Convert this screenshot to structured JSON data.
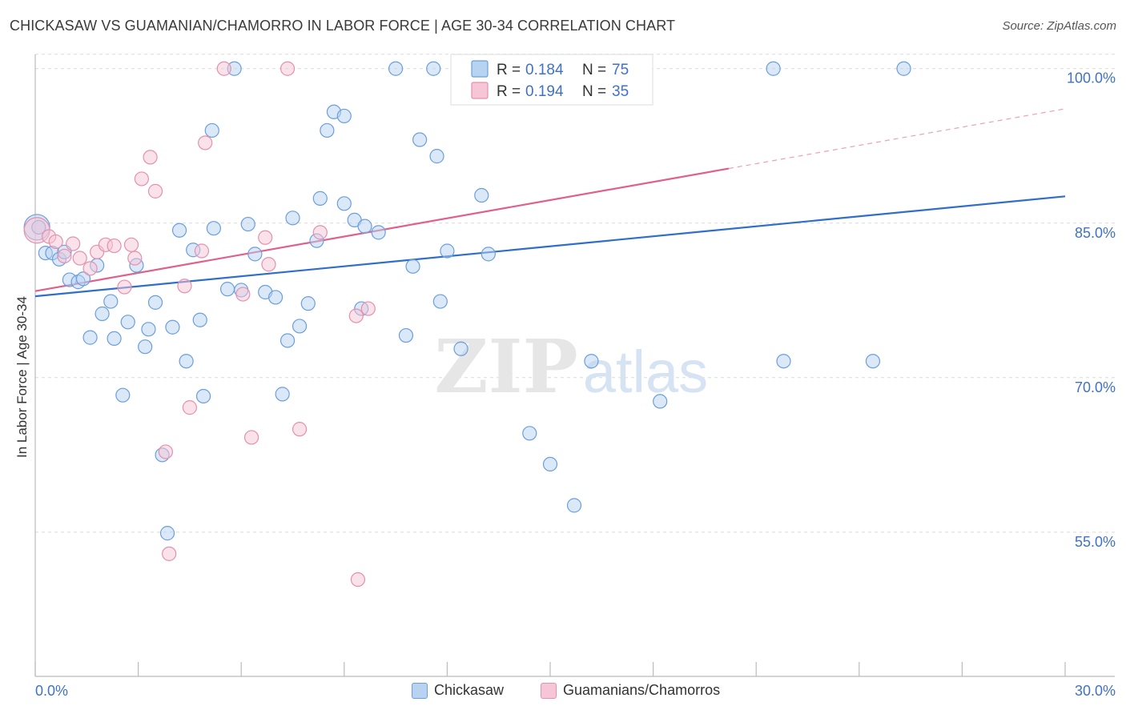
{
  "title": "CHICKASAW VS GUAMANIAN/CHAMORRO IN LABOR FORCE | AGE 30-34 CORRELATION CHART",
  "source": "Source: ZipAtlas.com",
  "watermark": {
    "zip": "ZIP",
    "atlas": "atlas"
  },
  "colors": {
    "blue_fill": "#b8d2f2",
    "blue_stroke": "#6a9fdc",
    "blue_line": "#2f6ec9",
    "pink_fill": "#f6c6d6",
    "pink_stroke": "#e68fae",
    "pink_line": "#e0608c",
    "axis_text": "#3f72c6",
    "grid": "#d9d9d9"
  },
  "legend_top": {
    "rows": [
      {
        "series": "Chickasaw",
        "r_label": "R =",
        "r_value": "0.184",
        "n_label": "N =",
        "n_value": "75"
      },
      {
        "series": "Guamanians/Chamorros",
        "r_label": "R =",
        "r_value": "0.194",
        "n_label": "N =",
        "n_value": "35"
      }
    ]
  },
  "legend_bottom": [
    "Chickasaw",
    "Guamanians/Chamorros"
  ],
  "chart_data": {
    "type": "scatter",
    "title": "CHICKASAW VS GUAMANIAN/CHAMORRO IN LABOR FORCE | AGE 30-34 CORRELATION CHART",
    "xlabel": "",
    "ylabel": "In Labor Force | Age 30-34",
    "xlim": [
      0,
      30
    ],
    "ylim": [
      41,
      102
    ],
    "x_tick_labels": [
      "0.0%",
      "30.0%"
    ],
    "y_tick_values": [
      55,
      70,
      85,
      100
    ],
    "y_tick_labels": [
      "55.0%",
      "70.0%",
      "85.0%",
      "100.0%"
    ],
    "grid": true,
    "legend_placement": "top-center",
    "series": [
      {
        "name": "Chickasaw",
        "color": "#6a9fdc",
        "r": 0.184,
        "n": 75,
        "trend": {
          "x": [
            0,
            30
          ],
          "y": [
            77.9,
            87.6
          ],
          "dashed_from": null
        },
        "points": [
          [
            0.05,
            84.6
          ],
          [
            0.3,
            82.1
          ],
          [
            0.5,
            82.1
          ],
          [
            0.7,
            81.5
          ],
          [
            0.85,
            82.2
          ],
          [
            1.0,
            79.5
          ],
          [
            1.25,
            79.3
          ],
          [
            1.4,
            79.6
          ],
          [
            1.8,
            80.9
          ],
          [
            1.6,
            73.9
          ],
          [
            1.95,
            76.2
          ],
          [
            2.2,
            77.4
          ],
          [
            2.3,
            73.8
          ],
          [
            2.55,
            68.3
          ],
          [
            2.7,
            75.4
          ],
          [
            2.95,
            80.9
          ],
          [
            3.2,
            73.0
          ],
          [
            3.3,
            74.7
          ],
          [
            3.5,
            77.3
          ],
          [
            3.7,
            62.5
          ],
          [
            3.85,
            54.9
          ],
          [
            4.0,
            74.9
          ],
          [
            4.2,
            84.3
          ],
          [
            4.4,
            71.6
          ],
          [
            4.6,
            82.4
          ],
          [
            4.8,
            75.6
          ],
          [
            4.9,
            68.2
          ],
          [
            5.15,
            94.0
          ],
          [
            5.2,
            84.5
          ],
          [
            5.6,
            78.6
          ],
          [
            5.8,
            100.0
          ],
          [
            6.0,
            78.5
          ],
          [
            6.2,
            84.9
          ],
          [
            6.4,
            82.0
          ],
          [
            6.7,
            78.3
          ],
          [
            7.0,
            77.8
          ],
          [
            7.2,
            68.4
          ],
          [
            7.35,
            73.6
          ],
          [
            7.5,
            85.5
          ],
          [
            7.7,
            75.0
          ],
          [
            7.95,
            77.2
          ],
          [
            8.2,
            83.3
          ],
          [
            8.3,
            87.4
          ],
          [
            8.5,
            94.0
          ],
          [
            8.7,
            95.8
          ],
          [
            9.0,
            86.9
          ],
          [
            9.0,
            95.4
          ],
          [
            9.3,
            85.3
          ],
          [
            9.5,
            76.7
          ],
          [
            9.6,
            84.7
          ],
          [
            10.0,
            84.1
          ],
          [
            10.5,
            100.0
          ],
          [
            10.8,
            74.1
          ],
          [
            11.0,
            80.8
          ],
          [
            11.2,
            93.1
          ],
          [
            11.6,
            100.0
          ],
          [
            11.7,
            91.5
          ],
          [
            11.8,
            77.4
          ],
          [
            12.0,
            82.3
          ],
          [
            12.4,
            72.8
          ],
          [
            13.0,
            87.7
          ],
          [
            13.2,
            82.0
          ],
          [
            14.4,
            64.6
          ],
          [
            15.0,
            100.0
          ],
          [
            15.0,
            61.6
          ],
          [
            15.7,
            57.6
          ],
          [
            16.2,
            71.6
          ],
          [
            16.5,
            100.0
          ],
          [
            17.2,
            100.0
          ],
          [
            18.2,
            67.7
          ],
          [
            21.5,
            100.0
          ],
          [
            21.8,
            71.6
          ],
          [
            24.4,
            71.6
          ],
          [
            25.3,
            100.0
          ],
          [
            0.1,
            84.6
          ]
        ]
      },
      {
        "name": "Guamanians/Chamorros",
        "color": "#e68fae",
        "r": 0.194,
        "n": 35,
        "trend": {
          "x": [
            0,
            20.2,
            30
          ],
          "y": [
            78.4,
            90.3,
            96.1
          ],
          "dashed_from": 20.2
        },
        "points": [
          [
            0.05,
            84.3
          ],
          [
            0.4,
            83.7
          ],
          [
            0.6,
            83.2
          ],
          [
            0.85,
            81.8
          ],
          [
            1.1,
            83.0
          ],
          [
            1.3,
            81.6
          ],
          [
            1.6,
            80.6
          ],
          [
            1.8,
            82.2
          ],
          [
            2.05,
            82.9
          ],
          [
            2.3,
            82.8
          ],
          [
            2.6,
            78.8
          ],
          [
            2.8,
            82.9
          ],
          [
            2.9,
            81.6
          ],
          [
            3.1,
            89.3
          ],
          [
            3.35,
            91.4
          ],
          [
            3.5,
            88.1
          ],
          [
            3.8,
            62.8
          ],
          [
            3.9,
            52.9
          ],
          [
            4.35,
            78.9
          ],
          [
            4.5,
            67.1
          ],
          [
            4.85,
            82.3
          ],
          [
            4.95,
            92.8
          ],
          [
            5.5,
            100.0
          ],
          [
            6.05,
            78.1
          ],
          [
            6.3,
            64.2
          ],
          [
            6.7,
            83.6
          ],
          [
            6.8,
            81.0
          ],
          [
            7.35,
            100.0
          ],
          [
            7.7,
            65.0
          ],
          [
            8.3,
            84.1
          ],
          [
            9.35,
            76.0
          ],
          [
            9.4,
            50.4
          ],
          [
            9.7,
            76.7
          ],
          [
            12.5,
            100.0
          ],
          [
            15.0,
            100.0
          ]
        ]
      }
    ]
  }
}
